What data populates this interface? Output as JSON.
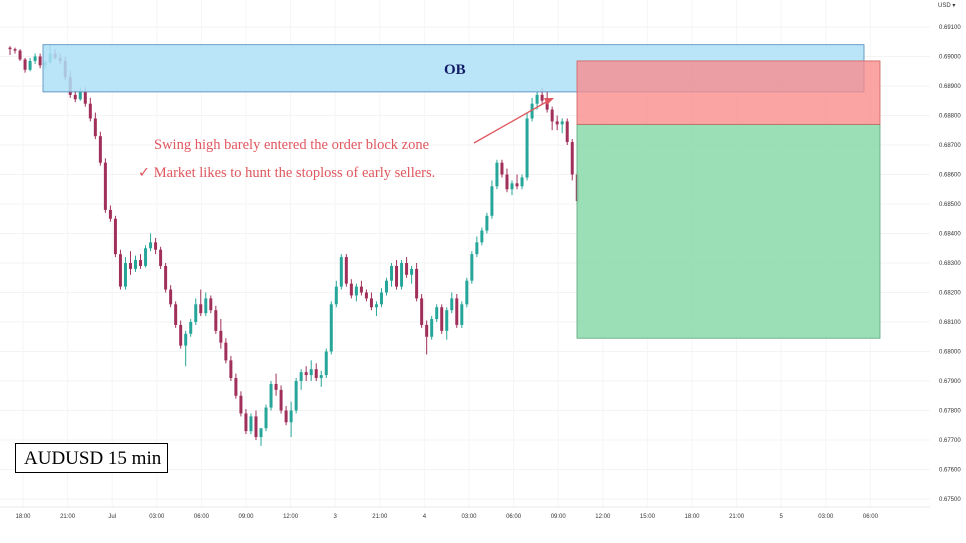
{
  "currency_label": "USD",
  "chart_title": "AUDUSD 15 min",
  "chart_data": {
    "type": "candlestick",
    "title": "AUDUSD 15 min",
    "currency": "USD",
    "y_ticks": [
      "0.69100",
      "0.69000",
      "0.68900",
      "0.68800",
      "0.68700",
      "0.68600",
      "0.68500",
      "0.68400",
      "0.68300",
      "0.68200",
      "0.68100",
      "0.68000",
      "0.67900",
      "0.67800",
      "0.67700",
      "0.67600",
      "0.67500"
    ],
    "x_ticks": [
      "18:00",
      "21:00",
      "Jul",
      "03:00",
      "06:00",
      "09:00",
      "12:00",
      "3",
      "21:00",
      "4",
      "03:00",
      "06:00",
      "09:00",
      "12:00",
      "15:00",
      "18:00",
      "21:00",
      "5",
      "03:00",
      "06:00"
    ],
    "ylim": [
      0.675,
      0.6915
    ],
    "zones": [
      {
        "name": "OB",
        "kind": "order_block",
        "color": "#aee0f7",
        "y_top": 0.6904,
        "y_bottom": 0.6888
      },
      {
        "name": "stop",
        "kind": "stop_loss",
        "color": "#f88a8a",
        "y_top": 0.68985,
        "y_bottom": 0.6877
      },
      {
        "name": "target",
        "kind": "take_profit",
        "color": "#90dcae",
        "y_top": 0.6877,
        "y_bottom": 0.68045
      }
    ],
    "annotations": [
      {
        "text": "Swing high barely entered the order block zone"
      },
      {
        "text": "✓  Market likes to hunt the stoploss of early sellers."
      }
    ],
    "up_color": "#26a69a",
    "down_color": "#a0305a",
    "candles": [
      [
        0.6903,
        0.69035,
        0.69005,
        0.69025
      ],
      [
        0.69025,
        0.6903,
        0.6901,
        0.6902
      ],
      [
        0.6902,
        0.69025,
        0.68985,
        0.6899
      ],
      [
        0.6899,
        0.68995,
        0.68945,
        0.68955
      ],
      [
        0.68955,
        0.68995,
        0.6895,
        0.68985
      ],
      [
        0.68985,
        0.6901,
        0.68975,
        0.69
      ],
      [
        0.69,
        0.6901,
        0.6896,
        0.6897
      ],
      [
        0.6897,
        0.68985,
        0.6896,
        0.6898
      ],
      [
        0.6898,
        0.6904,
        0.68975,
        0.6901
      ],
      [
        0.6901,
        0.69025,
        0.6899,
        0.68995
      ],
      [
        0.68995,
        0.6901,
        0.68975,
        0.68985
      ],
      [
        0.68985,
        0.69,
        0.6892,
        0.6893
      ],
      [
        0.6893,
        0.6895,
        0.6886,
        0.6887
      ],
      [
        0.6887,
        0.68885,
        0.68845,
        0.68855
      ],
      [
        0.68855,
        0.68895,
        0.6885,
        0.6888
      ],
      [
        0.6888,
        0.68895,
        0.6883,
        0.6884
      ],
      [
        0.6884,
        0.6886,
        0.6878,
        0.6879
      ],
      [
        0.6879,
        0.6881,
        0.6872,
        0.6873
      ],
      [
        0.6873,
        0.68745,
        0.6863,
        0.6864
      ],
      [
        0.6864,
        0.68655,
        0.6847,
        0.6848
      ],
      [
        0.6848,
        0.68495,
        0.6844,
        0.6845
      ],
      [
        0.6845,
        0.6846,
        0.6832,
        0.6833
      ],
      [
        0.6833,
        0.68345,
        0.6821,
        0.6822
      ],
      [
        0.6822,
        0.6832,
        0.6821,
        0.683
      ],
      [
        0.683,
        0.6834,
        0.6826,
        0.6828
      ],
      [
        0.6828,
        0.68325,
        0.6827,
        0.6831
      ],
      [
        0.6831,
        0.6833,
        0.6828,
        0.6829
      ],
      [
        0.6829,
        0.6836,
        0.68285,
        0.6835
      ],
      [
        0.6835,
        0.684,
        0.6834,
        0.6837
      ],
      [
        0.6837,
        0.68385,
        0.6833,
        0.68345
      ],
      [
        0.68345,
        0.68355,
        0.6828,
        0.6829
      ],
      [
        0.6829,
        0.683,
        0.682,
        0.6821
      ],
      [
        0.6821,
        0.68225,
        0.6815,
        0.6816
      ],
      [
        0.6816,
        0.6817,
        0.6808,
        0.6809
      ],
      [
        0.6809,
        0.68105,
        0.6801,
        0.6802
      ],
      [
        0.6802,
        0.6807,
        0.6795,
        0.6806
      ],
      [
        0.6806,
        0.6811,
        0.6805,
        0.681
      ],
      [
        0.681,
        0.6818,
        0.6809,
        0.6816
      ],
      [
        0.6816,
        0.6821,
        0.6812,
        0.6813
      ],
      [
        0.6813,
        0.682,
        0.6812,
        0.6818
      ],
      [
        0.6818,
        0.6819,
        0.6813,
        0.6814
      ],
      [
        0.6814,
        0.68155,
        0.6806,
        0.6807
      ],
      [
        0.6807,
        0.6811,
        0.6801,
        0.6803
      ],
      [
        0.6803,
        0.68045,
        0.6796,
        0.6797
      ],
      [
        0.6797,
        0.67985,
        0.679,
        0.6791
      ],
      [
        0.6791,
        0.67925,
        0.6784,
        0.6785
      ],
      [
        0.6785,
        0.67865,
        0.6778,
        0.6779
      ],
      [
        0.6779,
        0.67805,
        0.6772,
        0.6773
      ],
      [
        0.6773,
        0.6779,
        0.6772,
        0.6778
      ],
      [
        0.6778,
        0.678,
        0.677,
        0.6771
      ],
      [
        0.6771,
        0.6773,
        0.6768,
        0.6774
      ],
      [
        0.6774,
        0.6782,
        0.6773,
        0.6781
      ],
      [
        0.6781,
        0.679,
        0.678,
        0.6789
      ],
      [
        0.6789,
        0.67925,
        0.6785,
        0.6787
      ],
      [
        0.6787,
        0.67885,
        0.6779,
        0.678
      ],
      [
        0.678,
        0.67815,
        0.6775,
        0.6776
      ],
      [
        0.6776,
        0.6783,
        0.6771,
        0.678
      ],
      [
        0.678,
        0.6791,
        0.6779,
        0.679
      ],
      [
        0.679,
        0.6794,
        0.6787,
        0.6793
      ],
      [
        0.6793,
        0.6795,
        0.679,
        0.6792
      ],
      [
        0.6792,
        0.6797,
        0.679,
        0.6794
      ],
      [
        0.6794,
        0.6796,
        0.679,
        0.6791
      ],
      [
        0.6791,
        0.67935,
        0.6788,
        0.6792
      ],
      [
        0.6792,
        0.6801,
        0.6791,
        0.68
      ],
      [
        0.68,
        0.6817,
        0.6799,
        0.6816
      ],
      [
        0.6816,
        0.6824,
        0.6815,
        0.6822
      ],
      [
        0.6822,
        0.6833,
        0.6821,
        0.6832
      ],
      [
        0.6832,
        0.6833,
        0.6822,
        0.6823
      ],
      [
        0.6823,
        0.68245,
        0.6818,
        0.6819
      ],
      [
        0.6819,
        0.6823,
        0.6817,
        0.6822
      ],
      [
        0.6822,
        0.6824,
        0.6819,
        0.682
      ],
      [
        0.682,
        0.6821,
        0.6817,
        0.6818
      ],
      [
        0.6818,
        0.682,
        0.6814,
        0.6815
      ],
      [
        0.6815,
        0.6817,
        0.6812,
        0.6816
      ],
      [
        0.6816,
        0.68215,
        0.6815,
        0.682
      ],
      [
        0.682,
        0.6825,
        0.6819,
        0.6824
      ],
      [
        0.6824,
        0.683,
        0.6822,
        0.6829
      ],
      [
        0.6829,
        0.6831,
        0.6821,
        0.6822
      ],
      [
        0.6822,
        0.6831,
        0.6821,
        0.683
      ],
      [
        0.683,
        0.6832,
        0.6825,
        0.6826
      ],
      [
        0.6826,
        0.6829,
        0.6823,
        0.6828
      ],
      [
        0.6828,
        0.683,
        0.6817,
        0.6818
      ],
      [
        0.6818,
        0.68195,
        0.6808,
        0.6809
      ],
      [
        0.6809,
        0.68105,
        0.6799,
        0.6805
      ],
      [
        0.6805,
        0.6812,
        0.6804,
        0.6811
      ],
      [
        0.6811,
        0.6816,
        0.681,
        0.6815
      ],
      [
        0.6815,
        0.6816,
        0.6806,
        0.6807
      ],
      [
        0.6807,
        0.6815,
        0.6804,
        0.6814
      ],
      [
        0.6814,
        0.682,
        0.6813,
        0.6818
      ],
      [
        0.6818,
        0.68195,
        0.6808,
        0.6809
      ],
      [
        0.6809,
        0.6817,
        0.6808,
        0.6816
      ],
      [
        0.6816,
        0.6825,
        0.6815,
        0.6824
      ],
      [
        0.6824,
        0.6834,
        0.6823,
        0.6833
      ],
      [
        0.6833,
        0.6839,
        0.6832,
        0.6837
      ],
      [
        0.6837,
        0.6842,
        0.6836,
        0.6841
      ],
      [
        0.6841,
        0.6847,
        0.684,
        0.6846
      ],
      [
        0.6846,
        0.6858,
        0.6845,
        0.6856
      ],
      [
        0.6856,
        0.6865,
        0.6855,
        0.6864
      ],
      [
        0.6864,
        0.6865,
        0.6859,
        0.686
      ],
      [
        0.686,
        0.6862,
        0.6854,
        0.6855
      ],
      [
        0.6855,
        0.6858,
        0.6853,
        0.6857
      ],
      [
        0.6857,
        0.686,
        0.6855,
        0.6856
      ],
      [
        0.6856,
        0.686,
        0.6855,
        0.6859
      ],
      [
        0.6859,
        0.6881,
        0.6858,
        0.6879
      ],
      [
        0.6879,
        0.6886,
        0.6878,
        0.6884
      ],
      [
        0.6884,
        0.6888,
        0.6882,
        0.6887
      ],
      [
        0.6887,
        0.68895,
        0.6884,
        0.6885
      ],
      [
        0.6885,
        0.6888,
        0.6881,
        0.6882
      ],
      [
        0.6882,
        0.6883,
        0.6875,
        0.6878
      ],
      [
        0.6878,
        0.688,
        0.6875,
        0.6877
      ],
      [
        0.6877,
        0.6879,
        0.6874,
        0.6878
      ],
      [
        0.6878,
        0.6879,
        0.687,
        0.6871
      ],
      [
        0.6871,
        0.6872,
        0.6858,
        0.686
      ],
      [
        0.686,
        0.6861,
        0.685,
        0.6851
      ]
    ]
  }
}
